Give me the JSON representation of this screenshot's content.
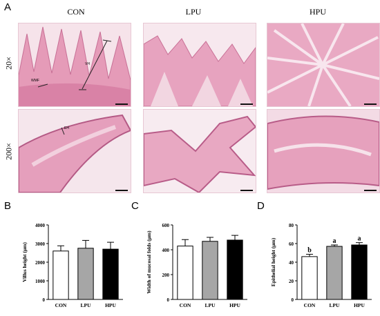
{
  "figure": {
    "panel_letters": [
      "A",
      "B",
      "C",
      "D"
    ],
    "groups": [
      "CON",
      "LPU",
      "HPU"
    ],
    "magnifications": [
      "20×",
      "200×"
    ],
    "annotations": {
      "con_20x": [
        "VH",
        "WMF"
      ],
      "con_200x": [
        "EH"
      ]
    }
  },
  "chart_data": [
    {
      "type": "bar",
      "panel": "B",
      "categories": [
        "CON",
        "LPU",
        "HPU"
      ],
      "values": [
        2600,
        2750,
        2700
      ],
      "errors": [
        280,
        420,
        370
      ],
      "ylabel": "Villus height (μm)",
      "xlabel": "",
      "ylim": [
        0,
        4000
      ],
      "yticks": [
        0,
        1000,
        2000,
        3000,
        4000
      ],
      "bar_colors": [
        "#ffffff",
        "#a6a6a6",
        "#000000"
      ],
      "sig_letters": []
    },
    {
      "type": "bar",
      "panel": "C",
      "categories": [
        "CON",
        "LPU",
        "HPU"
      ],
      "values": [
        430,
        468,
        478
      ],
      "errors": [
        52,
        32,
        38
      ],
      "ylabel": "Width of mucosal folds (μm)",
      "xlabel": "",
      "ylim": [
        0,
        600
      ],
      "yticks": [
        0,
        200,
        400,
        600
      ],
      "bar_colors": [
        "#ffffff",
        "#a6a6a6",
        "#000000"
      ],
      "sig_letters": []
    },
    {
      "type": "bar",
      "panel": "D",
      "categories": [
        "CON",
        "LPU",
        "HPU"
      ],
      "values": [
        46,
        57,
        58.5
      ],
      "errors": [
        2.5,
        1.5,
        2.5
      ],
      "ylabel": "Epithelial height (μm)",
      "xlabel": "",
      "ylim": [
        0,
        80
      ],
      "yticks": [
        0,
        20,
        40,
        60,
        80
      ],
      "bar_colors": [
        "#ffffff",
        "#a6a6a6",
        "#000000"
      ],
      "sig_letters": [
        "b",
        "a",
        "a"
      ]
    }
  ]
}
